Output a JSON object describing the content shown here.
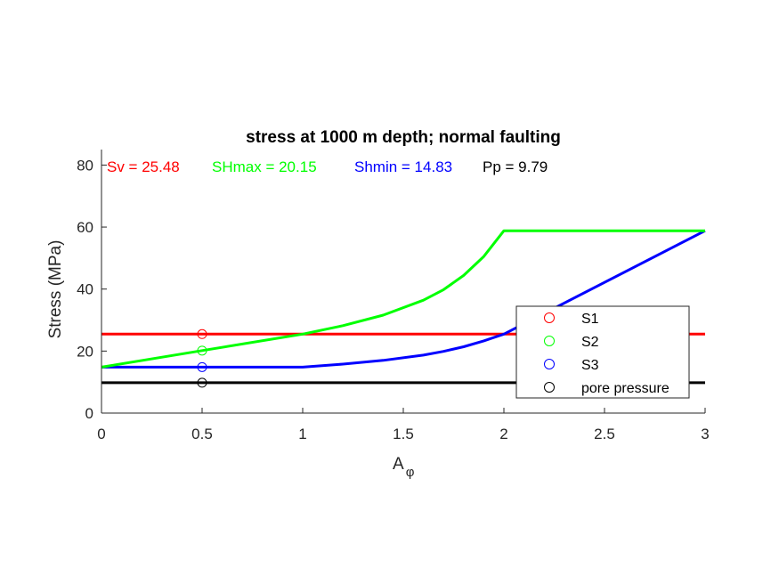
{
  "chart_data": {
    "type": "line",
    "title": "stress at 1000 m depth; normal faulting",
    "xlabel": "A",
    "xlabel_sub": "φ",
    "ylabel": "Stress (MPa)",
    "xlim": [
      0,
      3
    ],
    "ylim": [
      0,
      85
    ],
    "xticks": [
      0,
      0.5,
      1,
      1.5,
      2,
      2.5,
      3
    ],
    "xtick_labels": [
      "0",
      "0.5",
      "1",
      "1.5",
      "2",
      "2.5",
      "3"
    ],
    "yticks": [
      0,
      20,
      40,
      60,
      80
    ],
    "ytick_labels": [
      "0",
      "20",
      "40",
      "60",
      "80"
    ],
    "grid": false,
    "legend_position": "lower-right",
    "annotations": [
      {
        "text": "Sv = 25.48",
        "color": "#ff0000"
      },
      {
        "text": "SHmax = 20.15",
        "color": "#00ff00"
      },
      {
        "text": "Shmin = 14.83",
        "color": "#0000ff"
      },
      {
        "text": "Pp = 9.79",
        "color": "#000000"
      }
    ],
    "series": [
      {
        "name": "S1",
        "color": "#ff0000",
        "x": [
          0,
          3
        ],
        "y": [
          25.48,
          25.48
        ],
        "marker": {
          "x": 0.5,
          "y": 25.48
        }
      },
      {
        "name": "S2",
        "color": "#00ff00",
        "x": [
          0,
          0.5,
          1,
          1.2,
          1.4,
          1.6,
          1.7,
          1.8,
          1.9,
          2,
          3
        ],
        "y": [
          14.83,
          20.15,
          25.48,
          28.2,
          31.6,
          36.4,
          39.8,
          44.4,
          50.5,
          58.8,
          58.8
        ],
        "marker": {
          "x": 0.5,
          "y": 20.15
        }
      },
      {
        "name": "S3",
        "color": "#0000ff",
        "x": [
          0,
          0.5,
          1,
          1.2,
          1.4,
          1.6,
          1.7,
          1.8,
          1.9,
          2,
          3
        ],
        "y": [
          14.83,
          14.83,
          14.83,
          15.8,
          17.0,
          18.7,
          19.9,
          21.4,
          23.3,
          25.48,
          58.8
        ],
        "marker": {
          "x": 0.5,
          "y": 14.83
        }
      },
      {
        "name": "pore pressure",
        "color": "#000000",
        "x": [
          0,
          3
        ],
        "y": [
          9.79,
          9.79
        ],
        "marker": {
          "x": 0.5,
          "y": 9.79
        }
      }
    ]
  }
}
